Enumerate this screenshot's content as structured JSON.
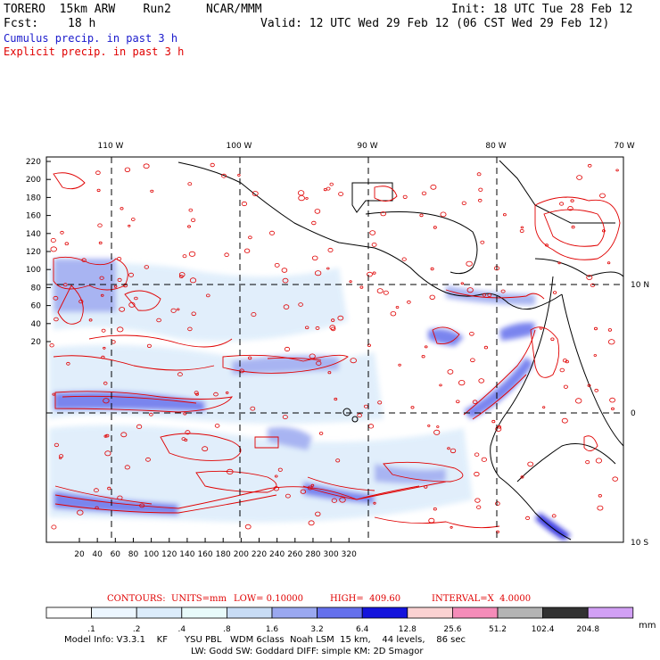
{
  "header": {
    "model_line": "TORERO  15km ARW    Run2     NCAR/MMM",
    "init_line": "Init: 18 UTC Tue 28 Feb 12",
    "fcst_label": "Fcst:",
    "fcst_value": "18 h",
    "valid_line": "Valid: 12 UTC Wed 29 Feb 12 (06 CST Wed 29 Feb 12)",
    "cumulus_title": "Cumulus precip. in past 3 h",
    "explicit_title": "Explicit precip. in past 3 h",
    "cumulus_color": "#1a1acc",
    "explicit_color": "#e00000"
  },
  "axes": {
    "top_lon_labels": [
      "110 W",
      "100 W",
      "90 W",
      "80 W",
      "70 W"
    ],
    "right_lat_labels": [
      "10 N",
      "0",
      "10 S"
    ],
    "left_y_ticks": [
      "220",
      "200",
      "180",
      "160",
      "140",
      "120",
      "100",
      "80",
      "60",
      "40",
      "20"
    ],
    "bottom_x_ticks": [
      "20",
      "40",
      "60",
      "80",
      "100",
      "120",
      "140",
      "160",
      "180",
      "200",
      "220",
      "240",
      "260",
      "280",
      "300",
      "320"
    ]
  },
  "contour_info": {
    "contours_label": "CONTOURS:",
    "units_label": "UNITS=mm",
    "low_label": "LOW= 0.10000",
    "high_label": "HIGH=  409.60",
    "interval_label": "INTERVAL=X  4.0000"
  },
  "colorbar": {
    "labels": [
      ".1",
      ".2",
      ".4",
      ".8",
      "1.6",
      "3.2",
      "6.4",
      "12.8",
      "25.6",
      "51.2",
      "102.4",
      "204.8"
    ],
    "unit": "mm",
    "colors": [
      "#ffffff",
      "#ecf6ff",
      "#dcecfb",
      "#e8fafa",
      "#c8dcf5",
      "#9aa8f0",
      "#6470ec",
      "#1414dc",
      "#fad2d2",
      "#f58cb9",
      "#b4b4b4",
      "#323232",
      "#d2a0f5"
    ]
  },
  "model_info": {
    "line1": "Model Info: V3.3.1    KF      YSU PBL   WDM 6class  Noah LSM  15 km,    44 levels,    86 sec",
    "line2": "LW: Godd SW: Goddard DIFF: simple KM: 2D Smagor"
  }
}
